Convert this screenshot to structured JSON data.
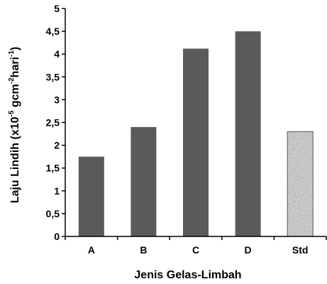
{
  "chart_data": {
    "type": "bar",
    "categories": [
      "A",
      "B",
      "C",
      "D",
      "Std"
    ],
    "values": [
      1.75,
      2.4,
      4.12,
      4.5,
      2.3
    ],
    "title": "",
    "xlabel": "Jenis Gelas-Limbah",
    "ylabel": {
      "prefix": "Laju Lindih (x10",
      "sup1": "-5",
      "mid": " gcm",
      "sup2": "-2",
      "mid2": "hari",
      "sup3": "-1",
      "suffix": ")"
    },
    "ylim": [
      0,
      5
    ],
    "yticks": [
      "0",
      "0,5",
      "1",
      "1,5",
      "2",
      "2,5",
      "3",
      "3,5",
      "4",
      "4,5",
      "5"
    ],
    "grid": false,
    "legend": "none",
    "bar_color": "#5a5a5a",
    "std_bar_style": "speckled-gray"
  }
}
